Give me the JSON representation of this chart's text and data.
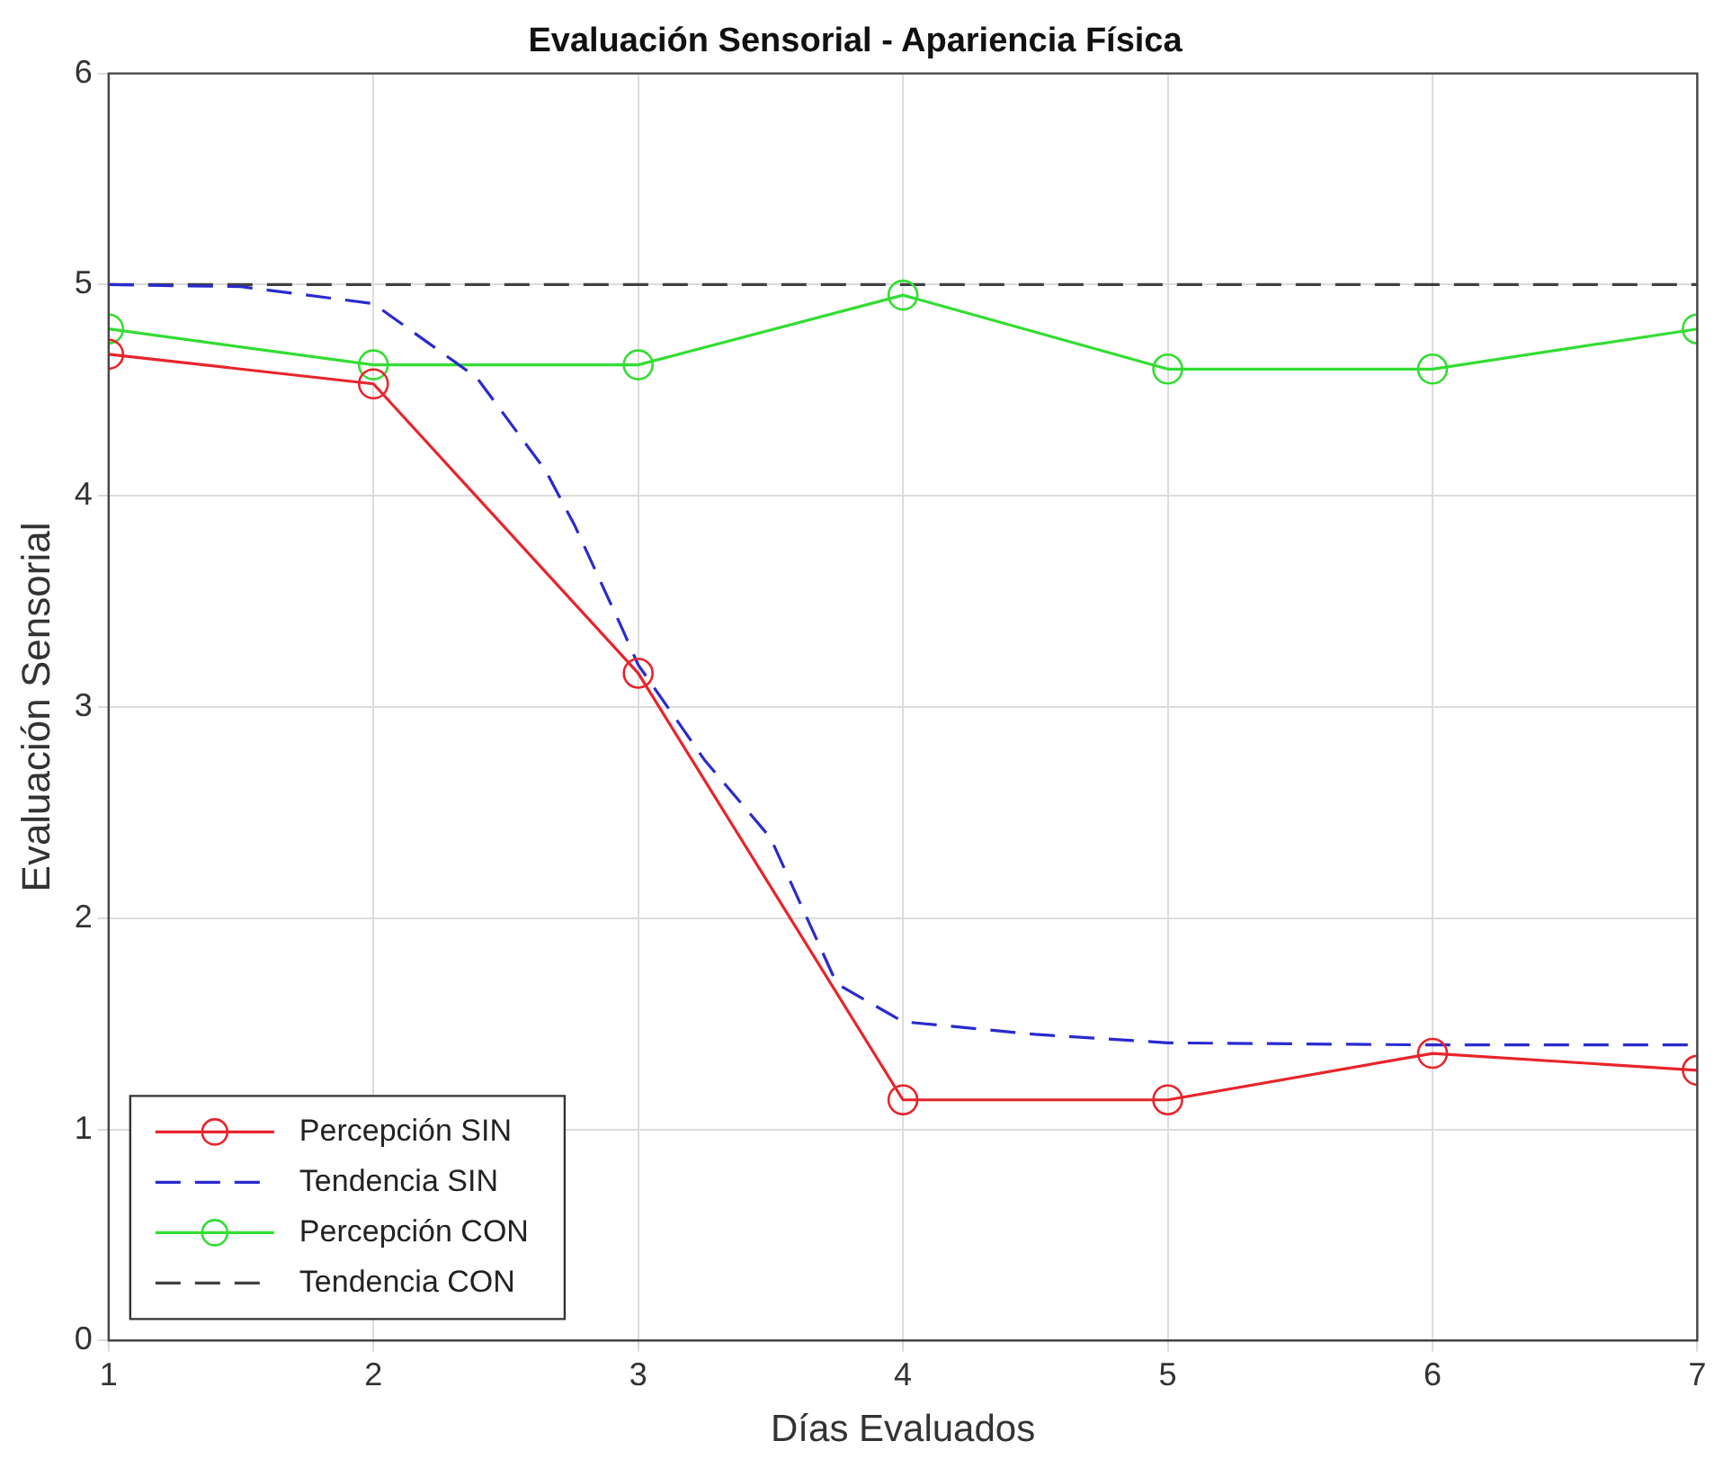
{
  "chart_data": {
    "type": "line",
    "title": "Evaluación Sensorial - Apariencia Física",
    "xlabel": "Días Evaluados",
    "ylabel": "Evaluación Sensorial",
    "xlim": [
      1,
      7
    ],
    "xticks": [
      1,
      2,
      3,
      4,
      5,
      6,
      7
    ],
    "ylim": [
      0,
      6
    ],
    "yticks": [
      0,
      1,
      2,
      3,
      4,
      5,
      6
    ],
    "grid": true,
    "legend": "bottom left",
    "series": [
      {
        "name": "Percepción SIN",
        "color": "#e8242b",
        "marker": "circle",
        "line_style": "solid",
        "x": [
          1,
          2,
          3,
          4,
          5,
          6,
          7
        ],
        "values": [
          4.67,
          4.53,
          3.16,
          1.14,
          1.14,
          1.36,
          1.28
        ]
      },
      {
        "name": "Tendencia SIN",
        "color": "#2a2ad0",
        "marker": "none",
        "line_style": "dashed",
        "x": [
          1,
          1.5,
          2,
          2.39,
          2.65,
          2.76,
          2.94,
          3,
          3.25,
          3.5,
          3.75,
          4,
          4.5,
          5,
          6,
          7
        ],
        "values": [
          5,
          4.99,
          4.91,
          4.56,
          4.12,
          3.86,
          3.37,
          3.2,
          2.75,
          2.38,
          1.69,
          1.51,
          1.45,
          1.41,
          1.4,
          1.4
        ]
      },
      {
        "name": "Percepción CON",
        "color": "#33dd33",
        "marker": "circle",
        "line_style": "solid",
        "x": [
          1,
          2,
          3,
          4,
          5,
          6,
          7
        ],
        "values": [
          4.79,
          4.62,
          4.62,
          4.95,
          4.6,
          4.6,
          4.79
        ]
      },
      {
        "name": "Tendencia CON",
        "color": "#404040",
        "marker": "none",
        "line_style": "dashed",
        "x": [
          1,
          7
        ],
        "values": [
          5,
          5
        ]
      }
    ]
  }
}
